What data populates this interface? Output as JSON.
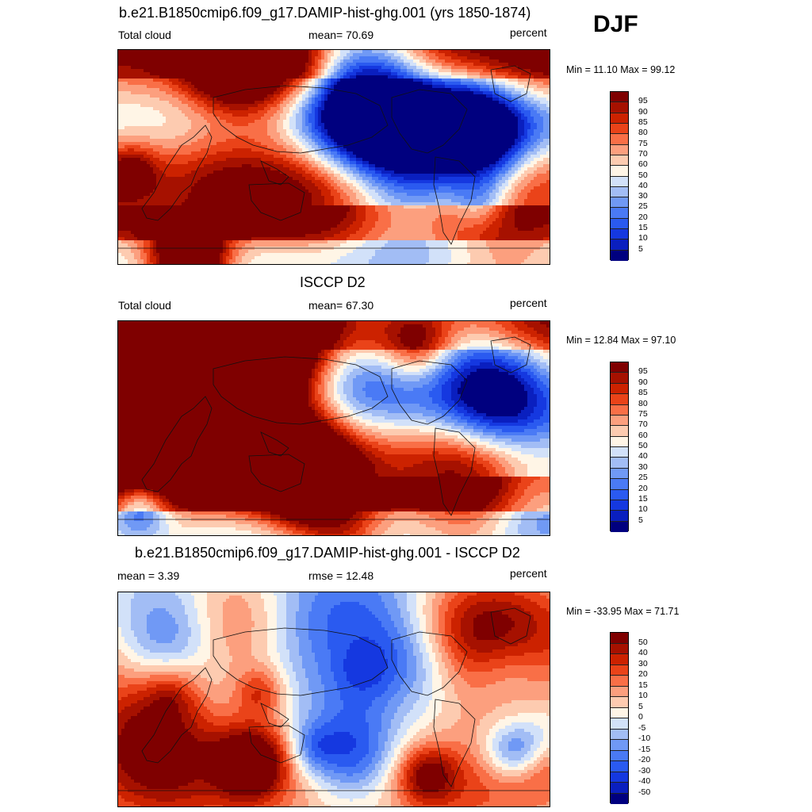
{
  "season": "DJF",
  "panels": [
    {
      "title": "b.e21.B1850cmip6.f09_g17.DAMIP-hist-ghg.001 (yrs 1850-1874)",
      "left_label": "Total cloud",
      "stat_label": "mean=  70.69",
      "units": "percent",
      "minmax": "Min =  11.10 Max =  99.12",
      "colorbar_labels": [
        "95",
        "90",
        "85",
        "80",
        "75",
        "70",
        "60",
        "50",
        "40",
        "30",
        "25",
        "20",
        "15",
        "10",
        "5"
      ]
    },
    {
      "title": "ISCCP D2",
      "left_label": "Total cloud",
      "stat_label": "mean=  67.30",
      "units": "percent",
      "minmax": "Min =  12.84 Max =  97.10",
      "colorbar_labels": [
        "95",
        "90",
        "85",
        "80",
        "75",
        "70",
        "60",
        "50",
        "40",
        "30",
        "25",
        "20",
        "15",
        "10",
        "5"
      ]
    },
    {
      "title": "b.e21.B1850cmip6.f09_g17.DAMIP-hist-ghg.001 - ISCCP D2",
      "left_label": "mean =   3.39",
      "stat_label": "rmse =  12.48",
      "units": "percent",
      "minmax": "Min = -33.95 Max =  71.71",
      "colorbar_labels": [
        "50",
        "40",
        "30",
        "20",
        "15",
        "10",
        "5",
        "0",
        "-5",
        "-10",
        "-15",
        "-20",
        "-30",
        "-40",
        "-50"
      ]
    }
  ],
  "colors": {
    "palette": [
      "#00007f",
      "#0a1fbf",
      "#1538e0",
      "#2a5af0",
      "#4a7af5",
      "#7099f5",
      "#a2bdf5",
      "#d2e1f9",
      "#fff5e6",
      "#fdcbb0",
      "#fc9f7e",
      "#f96f47",
      "#ea4319",
      "#cc2200",
      "#a61100",
      "#7f0000"
    ]
  }
}
